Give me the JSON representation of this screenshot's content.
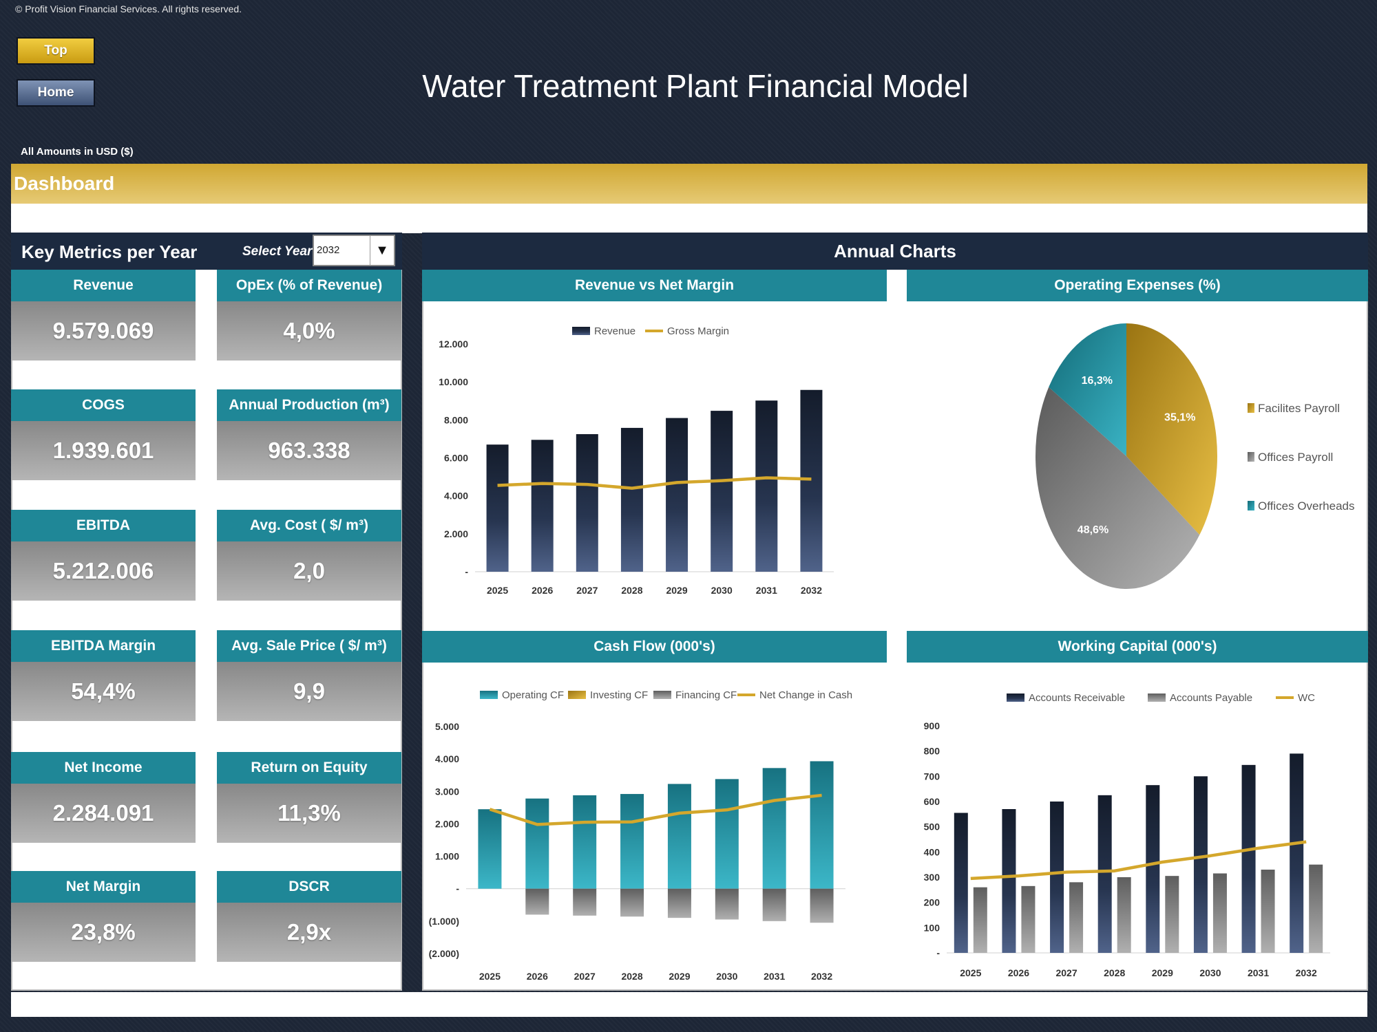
{
  "header": {
    "copyright": "© Profit Vision Financial Services. All rights reserved.",
    "title": "Water Treatment Plant Financial Model",
    "amounts_note": "All Amounts in  USD ($)",
    "top_label": "Top",
    "home_label": "Home",
    "section_title": "Dashboard"
  },
  "metrics": {
    "title": "Key Metrics per Year",
    "select_label": "Select Year",
    "selected_year": "2032",
    "items": [
      {
        "label": "Revenue",
        "value": "9.579.069"
      },
      {
        "label": "OpEx (% of Revenue)",
        "value": "4,0%"
      },
      {
        "label": "COGS",
        "value": "1.939.601"
      },
      {
        "label": "Annual Production (m³)",
        "value": "963.338"
      },
      {
        "label": "EBITDA",
        "value": "5.212.006"
      },
      {
        "label": "Avg. Cost ( $/ m³)",
        "value": "2,0"
      },
      {
        "label": "EBITDA Margin",
        "value": "54,4%"
      },
      {
        "label": "Avg. Sale Price ( $/ m³)",
        "value": "9,9"
      },
      {
        "label": "Net Income",
        "value": "2.284.091"
      },
      {
        "label": "Return on Equity",
        "value": "11,3%"
      },
      {
        "label": "Net Margin",
        "value": "23,8%"
      },
      {
        "label": "DSCR",
        "value": "2,9x"
      }
    ]
  },
  "charts_title": "Annual Charts",
  "colors": {
    "navy": "#1c2a40",
    "teal": "#1f8797",
    "gold": "#d4a72c",
    "gray": "#8a8a8a"
  },
  "chart_data": [
    {
      "type": "bar",
      "title": "Revenue vs Net Margin",
      "categories": [
        "2025",
        "2026",
        "2027",
        "2028",
        "2029",
        "2030",
        "2031",
        "2032"
      ],
      "series": [
        {
          "name": "Revenue",
          "type": "bar",
          "values": [
            6700,
            6950,
            7250,
            7580,
            8100,
            8480,
            9020,
            9580
          ]
        },
        {
          "name": "Gross Margin",
          "type": "line",
          "values": [
            4550,
            4650,
            4600,
            4400,
            4700,
            4800,
            4950,
            4880
          ]
        }
      ],
      "yticks": [
        "12.000",
        "10.000",
        "8.000",
        "6.000",
        "4.000",
        "2.000",
        "-"
      ],
      "ylim": [
        0,
        12000
      ]
    },
    {
      "type": "pie",
      "title": "Operating Expenses (%)",
      "slices": [
        {
          "name": "Facilites Payroll",
          "value": 35.1,
          "label": "35,1%"
        },
        {
          "name": "Offices Payroll",
          "value": 48.6,
          "label": "48,6%"
        },
        {
          "name": "Offices Overheads",
          "value": 16.3,
          "label": "16,3%"
        }
      ]
    },
    {
      "type": "bar",
      "title": "Cash Flow (000's)",
      "categories": [
        "2025",
        "2026",
        "2027",
        "2028",
        "2029",
        "2030",
        "2031",
        "2032"
      ],
      "series": [
        {
          "name": "Operating CF",
          "type": "bar",
          "values": [
            2450,
            2780,
            2880,
            2920,
            3230,
            3380,
            3720,
            3930
          ]
        },
        {
          "name": "Investing CF",
          "type": "bar",
          "values": [
            0,
            0,
            0,
            0,
            0,
            0,
            0,
            0
          ]
        },
        {
          "name": "Financing CF",
          "type": "bar",
          "values": [
            0,
            -800,
            -830,
            -860,
            -900,
            -950,
            -1000,
            -1050
          ]
        },
        {
          "name": "Net Change in Cash",
          "type": "line",
          "values": [
            2450,
            1980,
            2050,
            2060,
            2330,
            2430,
            2720,
            2880
          ]
        }
      ],
      "yticks": [
        "5.000",
        "4.000",
        "3.000",
        "2.000",
        "1.000",
        "-",
        "(1.000)",
        "(2.000)"
      ],
      "ylim": [
        -2000,
        5000
      ]
    },
    {
      "type": "bar",
      "title": "Working Capital (000's)",
      "categories": [
        "2025",
        "2026",
        "2027",
        "2028",
        "2029",
        "2030",
        "2031",
        "2032"
      ],
      "series": [
        {
          "name": "Accounts Receivable",
          "type": "bar",
          "values": [
            555,
            570,
            600,
            625,
            665,
            700,
            745,
            790
          ]
        },
        {
          "name": "Accounts Payable",
          "type": "bar",
          "values": [
            260,
            265,
            280,
            300,
            305,
            315,
            330,
            350
          ]
        },
        {
          "name": "WC",
          "type": "line",
          "values": [
            295,
            305,
            320,
            325,
            360,
            385,
            415,
            440
          ]
        }
      ],
      "yticks": [
        "900",
        "800",
        "700",
        "600",
        "500",
        "400",
        "300",
        "200",
        "100",
        "-"
      ],
      "ylim": [
        0,
        900
      ]
    }
  ]
}
